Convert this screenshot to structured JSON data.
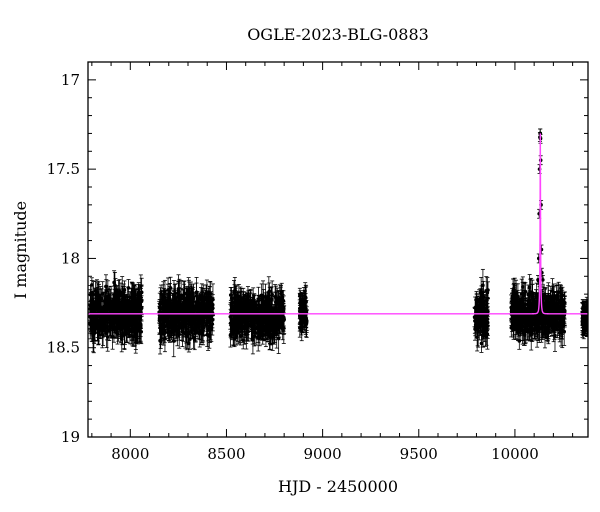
{
  "chart_data": {
    "type": "scatter",
    "title": "OGLE-2023-BLG-0883",
    "xlabel": "HJD - 2450000",
    "ylabel": "I magnitude",
    "xlim": [
      7780,
      10380
    ],
    "ylim": [
      19,
      16.9
    ],
    "y_inverted": true,
    "x_ticks": [
      8000,
      8500,
      9000,
      9500,
      10000
    ],
    "x_tick_labels": [
      "8000",
      "8500",
      "9000",
      "9500",
      "10000"
    ],
    "y_ticks": [
      17,
      17.5,
      18,
      18.5,
      19
    ],
    "y_tick_labels": [
      "17",
      "17.5",
      "18",
      "18.5",
      "19"
    ],
    "grid": false,
    "legend": false,
    "baseline_mag": 18.31,
    "point_color": "#000000",
    "model_color": "#ff44ff",
    "observing_seasons": [
      {
        "start": 7790,
        "end": 8060,
        "center": 18.31,
        "scatter": 0.13
      },
      {
        "start": 8150,
        "end": 8430,
        "center": 18.31,
        "scatter": 0.13
      },
      {
        "start": 8520,
        "end": 8800,
        "center": 18.32,
        "scatter": 0.13
      },
      {
        "start": 8880,
        "end": 8920,
        "center": 18.31,
        "scatter": 0.1
      },
      {
        "start": 9790,
        "end": 9860,
        "center": 18.32,
        "scatter": 0.13
      },
      {
        "start": 9980,
        "end": 10260,
        "center": 18.31,
        "scatter": 0.12
      },
      {
        "start": 10350,
        "end": 10380,
        "center": 18.33,
        "scatter": 0.05
      }
    ],
    "event": {
      "t0": 10132,
      "peak_mag": 17.3,
      "tE": 5.5,
      "u0": 0.12,
      "peak_points": [
        {
          "x": 10130,
          "y": 17.32
        },
        {
          "x": 10131,
          "y": 17.3
        },
        {
          "x": 10132,
          "y": 17.3
        },
        {
          "x": 10133,
          "y": 17.33
        },
        {
          "x": 10134,
          "y": 17.45
        },
        {
          "x": 10128,
          "y": 17.5
        },
        {
          "x": 10136,
          "y": 17.7
        },
        {
          "x": 10126,
          "y": 17.75
        },
        {
          "x": 10138,
          "y": 17.95
        },
        {
          "x": 10124,
          "y": 18.0
        },
        {
          "x": 10140,
          "y": 18.08
        },
        {
          "x": 10145,
          "y": 18.12
        },
        {
          "x": 10120,
          "y": 18.12
        },
        {
          "x": 10110,
          "y": 18.2
        },
        {
          "x": 10155,
          "y": 18.2
        }
      ]
    }
  }
}
